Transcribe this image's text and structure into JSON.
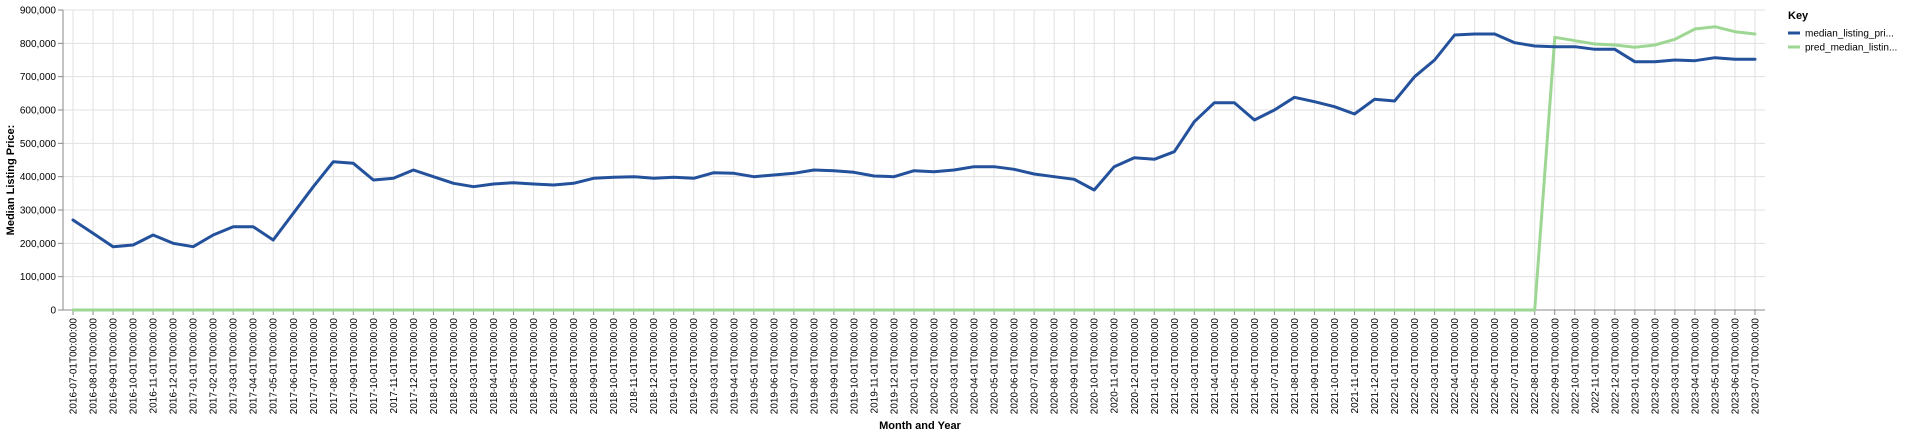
{
  "chart_data": {
    "type": "line",
    "title": "",
    "xlabel": "Month and Year",
    "ylabel": "Median Listing Price:",
    "ylim": [
      0,
      900000
    ],
    "yticks": [
      0,
      100000,
      200000,
      300000,
      400000,
      500000,
      600000,
      700000,
      800000,
      900000
    ],
    "ytick_labels": [
      "0",
      "100,000",
      "200,000",
      "300,000",
      "400,000",
      "500,000",
      "600,000",
      "700,000",
      "800,000",
      "900,000"
    ],
    "grid": true,
    "legend": {
      "title": "Key",
      "placement": "right",
      "entries": [
        "median_listing_pri...",
        "pred_median_listin..."
      ]
    },
    "colors": {
      "median_listing_price": "#24519c",
      "pred_median_listing_price": "#9ed793",
      "grid": "#e1e1e1",
      "axis": "#888888",
      "text": "#000000"
    },
    "x": [
      "2016-07-01T00:00:00",
      "2016-08-01T00:00:00",
      "2016-09-01T00:00:00",
      "2016-10-01T00:00:00",
      "2016-11-01T00:00:00",
      "2016-12-01T00:00:00",
      "2017-01-01T00:00:00",
      "2017-02-01T00:00:00",
      "2017-03-01T00:00:00",
      "2017-04-01T00:00:00",
      "2017-05-01T00:00:00",
      "2017-06-01T00:00:00",
      "2017-07-01T00:00:00",
      "2017-08-01T00:00:00",
      "2017-09-01T00:00:00",
      "2017-10-01T00:00:00",
      "2017-11-01T00:00:00",
      "2017-12-01T00:00:00",
      "2018-01-01T00:00:00",
      "2018-02-01T00:00:00",
      "2018-03-01T00:00:00",
      "2018-04-01T00:00:00",
      "2018-05-01T00:00:00",
      "2018-06-01T00:00:00",
      "2018-07-01T00:00:00",
      "2018-08-01T00:00:00",
      "2018-09-01T00:00:00",
      "2018-10-01T00:00:00",
      "2018-11-01T00:00:00",
      "2018-12-01T00:00:00",
      "2019-01-01T00:00:00",
      "2019-02-01T00:00:00",
      "2019-03-01T00:00:00",
      "2019-04-01T00:00:00",
      "2019-05-01T00:00:00",
      "2019-06-01T00:00:00",
      "2019-07-01T00:00:00",
      "2019-08-01T00:00:00",
      "2019-09-01T00:00:00",
      "2019-10-01T00:00:00",
      "2019-11-01T00:00:00",
      "2019-12-01T00:00:00",
      "2020-01-01T00:00:00",
      "2020-02-01T00:00:00",
      "2020-03-01T00:00:00",
      "2020-04-01T00:00:00",
      "2020-05-01T00:00:00",
      "2020-06-01T00:00:00",
      "2020-07-01T00:00:00",
      "2020-08-01T00:00:00",
      "2020-09-01T00:00:00",
      "2020-10-01T00:00:00",
      "2020-11-01T00:00:00",
      "2020-12-01T00:00:00",
      "2021-01-01T00:00:00",
      "2021-02-01T00:00:00",
      "2021-03-01T00:00:00",
      "2021-04-01T00:00:00",
      "2021-05-01T00:00:00",
      "2021-06-01T00:00:00",
      "2021-07-01T00:00:00",
      "2021-08-01T00:00:00",
      "2021-09-01T00:00:00",
      "2021-10-01T00:00:00",
      "2021-11-01T00:00:00",
      "2021-12-01T00:00:00",
      "2022-01-01T00:00:00",
      "2022-02-01T00:00:00",
      "2022-03-01T00:00:00",
      "2022-04-01T00:00:00",
      "2022-05-01T00:00:00",
      "2022-06-01T00:00:00",
      "2022-07-01T00:00:00",
      "2022-08-01T00:00:00",
      "2022-09-01T00:00:00",
      "2022-10-01T00:00:00",
      "2022-11-01T00:00:00",
      "2022-12-01T00:00:00",
      "2023-01-01T00:00:00",
      "2023-02-01T00:00:00",
      "2023-03-01T00:00:00",
      "2023-04-01T00:00:00",
      "2023-05-01T00:00:00",
      "2023-06-01T00:00:00",
      "2023-07-01T00:00:00"
    ],
    "series": [
      {
        "name": "median_listing_pri...",
        "color": "#24519c",
        "values": [
          270000,
          230000,
          190000,
          195000,
          225000,
          200000,
          190000,
          225000,
          250000,
          250000,
          210000,
          290000,
          370000,
          445000,
          440000,
          390000,
          395000,
          420000,
          400000,
          380000,
          370000,
          378000,
          382000,
          378000,
          375000,
          380000,
          395000,
          398000,
          400000,
          395000,
          398000,
          395000,
          412000,
          410000,
          400000,
          405000,
          410000,
          420000,
          418000,
          413000,
          402000,
          400000,
          418000,
          415000,
          420000,
          430000,
          430000,
          422000,
          408000,
          400000,
          392000,
          360000,
          430000,
          457000,
          452000,
          475000,
          565000,
          622000,
          622000,
          570000,
          600000,
          638000,
          625000,
          610000,
          588000,
          632000,
          627000,
          700000,
          750000,
          825000,
          828000,
          828000,
          802000,
          792000,
          790000,
          790000,
          782000,
          782000,
          745000,
          745000,
          750000,
          748000,
          757000,
          752000,
          752000
        ]
      },
      {
        "name": "pred_median_listin...",
        "color": "#9ed793",
        "values": [
          0,
          0,
          0,
          0,
          0,
          0,
          0,
          0,
          0,
          0,
          0,
          0,
          0,
          0,
          0,
          0,
          0,
          0,
          0,
          0,
          0,
          0,
          0,
          0,
          0,
          0,
          0,
          0,
          0,
          0,
          0,
          0,
          0,
          0,
          0,
          0,
          0,
          0,
          0,
          0,
          0,
          0,
          0,
          0,
          0,
          0,
          0,
          0,
          0,
          0,
          0,
          0,
          0,
          0,
          0,
          0,
          0,
          0,
          0,
          0,
          0,
          0,
          0,
          0,
          0,
          0,
          0,
          0,
          0,
          0,
          0,
          0,
          0,
          0,
          818000,
          808000,
          798000,
          795000,
          788000,
          795000,
          812000,
          843000,
          850000,
          835000,
          828000
        ]
      }
    ]
  }
}
